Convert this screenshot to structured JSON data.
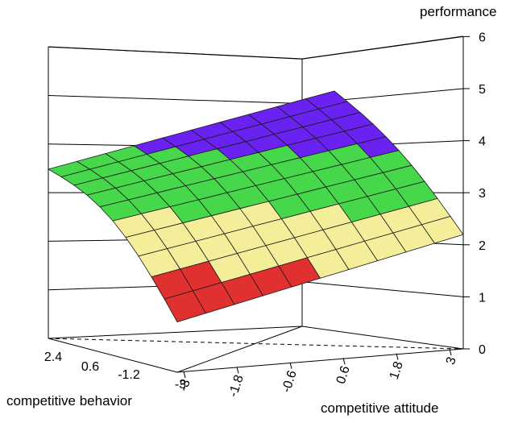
{
  "chart_data": {
    "type": "surface",
    "zlabel": "performance",
    "xlabel": "competitive attitude",
    "ylabel": "competitive behavior",
    "z_ticks": [
      "0",
      "1",
      "2",
      "3",
      "4",
      "5",
      "6"
    ],
    "x_ticks": [
      "-3",
      "-1.8",
      "-0.6",
      "0.6",
      "1.8",
      "3"
    ],
    "y_ticks": [
      "2.4",
      "0.6",
      "-1.2",
      "-3"
    ],
    "zlim": [
      0,
      6
    ],
    "xlim": [
      -3,
      3
    ],
    "ylim": [
      -3,
      3
    ],
    "grid": true,
    "color_bands": [
      {
        "from": 1,
        "to": 2,
        "color": "#e03030"
      },
      {
        "from": 2,
        "to": 3,
        "color": "#f4ee9a"
      },
      {
        "from": 3,
        "to": 4,
        "color": "#46d84a"
      },
      {
        "from": 4,
        "to": 5,
        "color": "#6a22f0"
      },
      {
        "from": 5,
        "to": 6,
        "color": "#62aaf0"
      }
    ],
    "surface_grid_size": 10,
    "corner_values": {
      "x_-3_y_-3": 1.1,
      "x_3_y_-3": 2.5,
      "x_-3_y_3": 3.7,
      "x_3_y_3": 4.9
    }
  }
}
